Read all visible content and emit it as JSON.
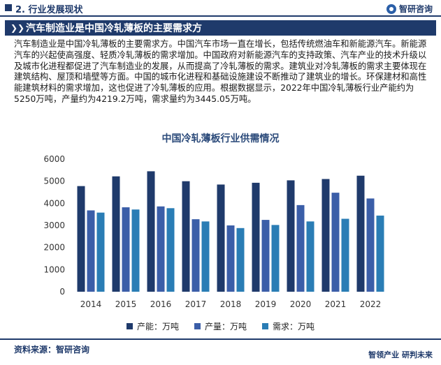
{
  "header": {
    "section": "2. 行业发展现状",
    "brand": "智研咨询"
  },
  "title": "汽车制造业是中国冷轧薄板的主要需求方",
  "body_text": "汽车制造业是中国冷轧薄板的主要需求方。中国汽车市场一直在增长，包括传统燃油车和新能源汽车。新能源汽车的兴起使高强度、轻质冷轧薄板的需求增加。中国政府对新能源汽车的支持政策、汽车产业的技术升级以及城市化进程都促进了汽车制造业的发展，从而提高了冷轧薄板的需求。建筑业对冷轧薄板的需求主要体现在建筑结构、屋顶和墙壁等方面。中国的城市化进程和基础设施建设不断推动了建筑业的增长。环保建材和高性能建筑材料的需求增加，这也促进了冷轧薄板的应用。根据数据显示，2022年中国冷轧薄板行业产能约为5250万吨，产量约为4219.2万吨，需求量约为3445.05万吨。",
  "chart_data": {
    "type": "bar",
    "title": "中国冷轧薄板行业供需情况",
    "categories": [
      "2014",
      "2015",
      "2016",
      "2017",
      "2018",
      "2019",
      "2020",
      "2021",
      "2022"
    ],
    "series": [
      {
        "name": "产能：万吨",
        "color": "#1f3a6b",
        "values": [
          4780,
          5220,
          5450,
          5000,
          4850,
          4930,
          5040,
          5100,
          5250
        ]
      },
      {
        "name": "产量：万吨",
        "color": "#3b5ea8",
        "values": [
          3680,
          3820,
          3860,
          3280,
          3000,
          3250,
          3920,
          4480,
          4219.2
        ]
      },
      {
        "name": "需求：万吨",
        "color": "#2a7db5",
        "values": [
          3580,
          3720,
          3780,
          3180,
          2880,
          3020,
          3180,
          3300,
          3445.05
        ]
      }
    ],
    "ylim": [
      0,
      6000
    ],
    "yticks": [
      0,
      1000,
      2000,
      3000,
      4000,
      5000,
      6000
    ],
    "grid": false,
    "legend_position": "bottom"
  },
  "source": "资料来源：智研咨询",
  "footer": "智领产业 研判未来"
}
